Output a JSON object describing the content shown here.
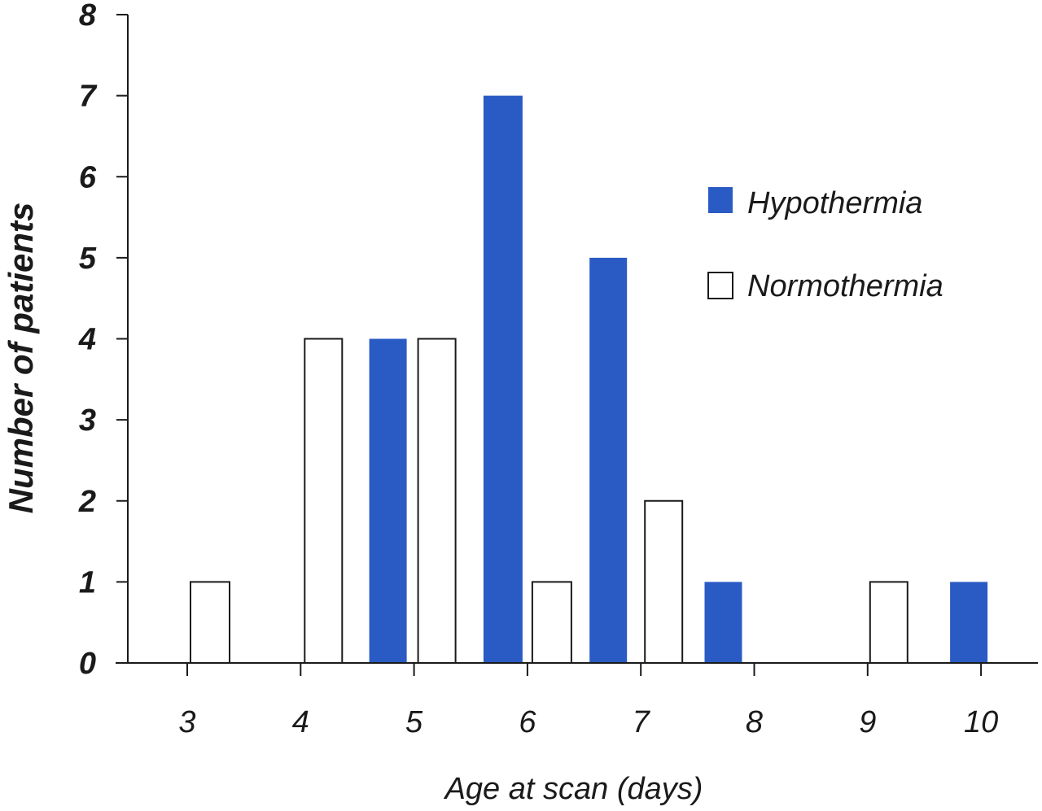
{
  "chart_data": {
    "type": "bar",
    "categories": [
      "3",
      "4",
      "5",
      "6",
      "7",
      "8",
      "9",
      "10"
    ],
    "xlabel": "Age at scan (days)",
    "ylabel": "Number of patients",
    "ylim": [
      0,
      8
    ],
    "yticks": [
      "0",
      "1",
      "2",
      "3",
      "4",
      "5",
      "6",
      "7",
      "8"
    ],
    "grid": false,
    "legend_position": "top-right",
    "series": [
      {
        "name": "Hypothermia",
        "color": "#2a5bc4",
        "values": [
          0,
          0,
          4,
          7,
          5,
          1,
          0,
          1
        ]
      },
      {
        "name": "Normothermia",
        "color": "#ffffff",
        "values": [
          1,
          4,
          4,
          1,
          2,
          0,
          1,
          0
        ]
      }
    ]
  }
}
